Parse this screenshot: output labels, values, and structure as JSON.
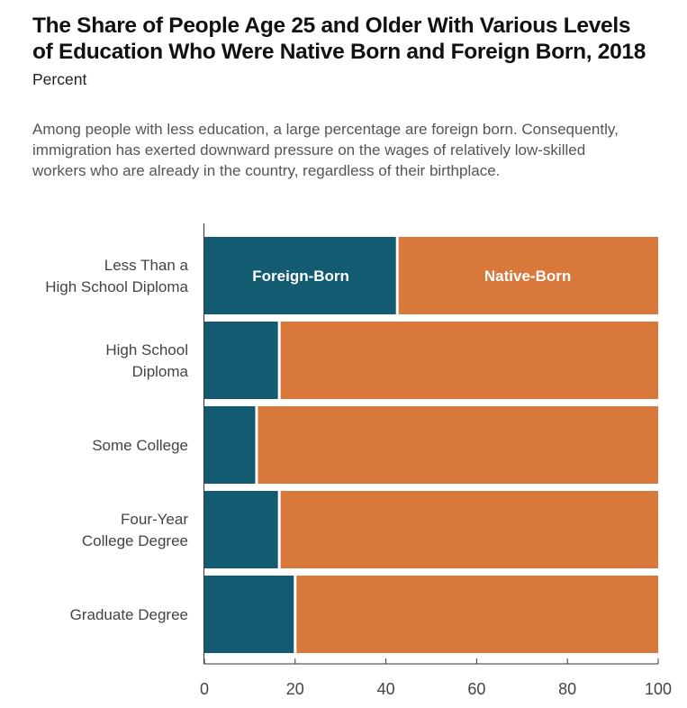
{
  "header": {
    "title_lines": [
      "The Share of People Age 25 and Older With Various Levels",
      "of Education Who Were Native Born and Foreign Born, 2018"
    ],
    "subtitle": "Percent",
    "description_lines": [
      "Among people with less education, a large percentage are foreign born. Consequently,",
      "immigration has exerted downward pressure on the wages of relatively low-skilled",
      "workers who are already in the country, regardless of their birthplace."
    ]
  },
  "chart_data": {
    "type": "bar",
    "orientation": "horizontal",
    "stacked": true,
    "title": "The Share of People Age 25 and Older With Various Levels of Education Who Were Native Born and Foreign Born, 2018",
    "subtitle": "Percent",
    "categories": [
      [
        "Less Than a",
        "High School Diploma"
      ],
      [
        "High School",
        "Diploma"
      ],
      [
        "Some College"
      ],
      [
        "Four-Year",
        "College Degree"
      ],
      [
        "Graduate Degree"
      ]
    ],
    "series": [
      {
        "name": "Foreign-Born",
        "color": "#135b70",
        "values": [
          42.5,
          16.5,
          11.5,
          16.5,
          20
        ]
      },
      {
        "name": "Native-Born",
        "color": "#d9783b",
        "values": [
          57.5,
          83.5,
          88.5,
          83.5,
          80
        ]
      }
    ],
    "series_labels_on_first_bar": true,
    "xlim": [
      0,
      100
    ],
    "xticks": [
      0,
      20,
      40,
      60,
      80,
      100
    ],
    "xticklabels": [
      "0",
      "20",
      "40",
      "60",
      "80",
      "100"
    ],
    "xlabel": "",
    "ylabel": "",
    "grid": false,
    "legend": "none"
  }
}
